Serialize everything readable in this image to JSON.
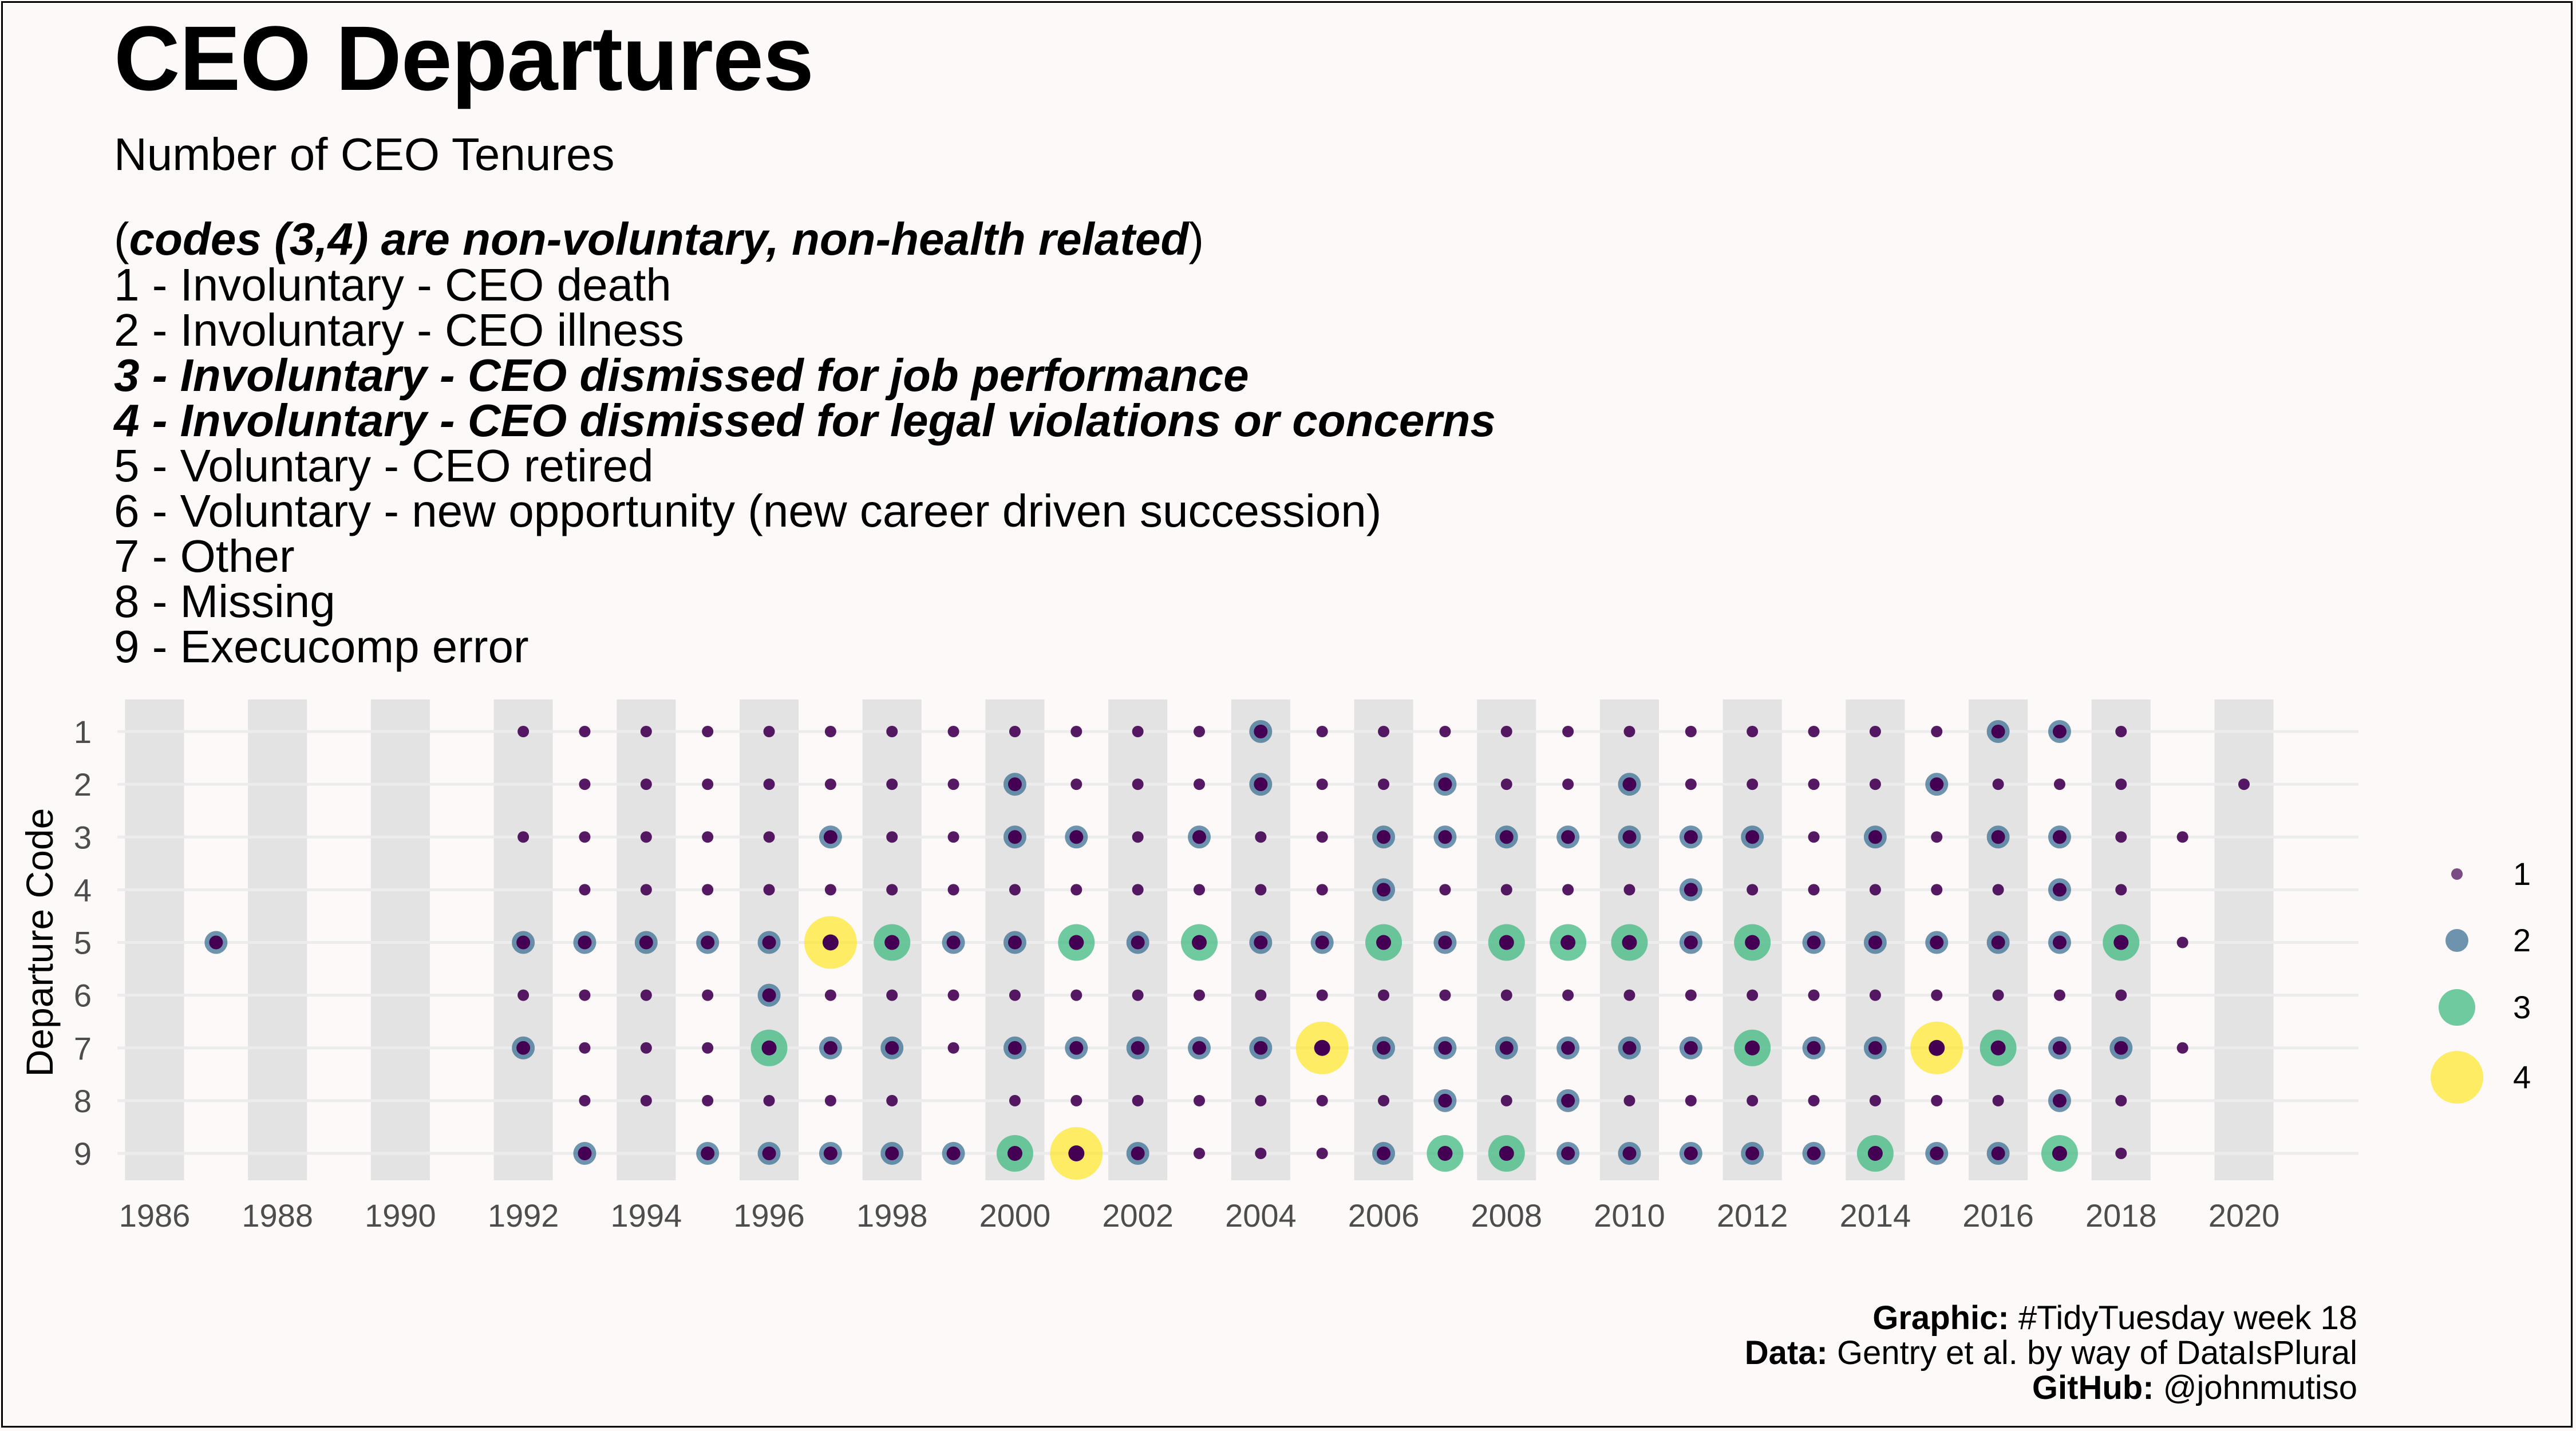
{
  "title": "CEO Departures",
  "subtitle": "Number of CEO Tenures",
  "code_note": {
    "open": "(",
    "text": "codes (3,4) are non-voluntary, non-health related",
    "close": ")"
  },
  "codes": [
    {
      "text": "1 - Involuntary - CEO death",
      "emphasis": false
    },
    {
      "text": "2 - Involuntary - CEO illness",
      "emphasis": false
    },
    {
      "text": "3 - Involuntary - CEO dismissed for job performance",
      "emphasis": true
    },
    {
      "text": "4 - Involuntary - CEO dismissed for legal violations or concerns",
      "emphasis": true
    },
    {
      "text": "5 - Voluntary - CEO retired",
      "emphasis": false
    },
    {
      "text": "6 - Voluntary - new opportunity (new career driven succession)",
      "emphasis": false
    },
    {
      "text": "7 - Other",
      "emphasis": false
    },
    {
      "text": "8 - Missing",
      "emphasis": false
    },
    {
      "text": "9 - Execucomp error",
      "emphasis": false
    }
  ],
  "caption": [
    {
      "label": "Graphic:",
      "text": " #TidyTuesday week 18"
    },
    {
      "label": "Data:",
      "text": " Gentry et al. by way of DataIsPlural"
    },
    {
      "label": "GitHub:",
      "text": " @johnmutiso"
    }
  ],
  "chart_data": {
    "type": "scatter",
    "ylabel": "Departure Code",
    "xlabel": "",
    "x_ticks": [
      "1986",
      "1988",
      "1990",
      "1992",
      "1994",
      "1996",
      "1998",
      "2000",
      "2002",
      "2004",
      "2006",
      "2008",
      "2010",
      "2012",
      "2014",
      "2016",
      "2018",
      "2020"
    ],
    "y_ticks": [
      "1",
      "2",
      "3",
      "4",
      "5",
      "6",
      "7",
      "8",
      "9"
    ],
    "xlim": [
      1985.5,
      2021.5
    ],
    "ylim": [
      1,
      9
    ],
    "y_reversed": true,
    "even_year_bands": true,
    "legend": {
      "position": "right",
      "entries": [
        "1",
        "2",
        "3",
        "4"
      ]
    },
    "colors": {
      "1": "#440154",
      "2": "#31688e",
      "3": "#35b779",
      "4": "#fde725"
    },
    "dot_color": "#440154",
    "band_color": "#e3e3e3",
    "grid_color": "#ececec",
    "note": "size/color encode the number of CEO tenures (1-4)",
    "points": [
      [
        1987,
        5,
        2
      ],
      [
        1992,
        1,
        1
      ],
      [
        1992,
        3,
        1
      ],
      [
        1992,
        5,
        2
      ],
      [
        1992,
        6,
        1
      ],
      [
        1992,
        7,
        2
      ],
      [
        1993,
        1,
        1
      ],
      [
        1993,
        2,
        1
      ],
      [
        1993,
        3,
        1
      ],
      [
        1993,
        4,
        1
      ],
      [
        1993,
        5,
        2
      ],
      [
        1993,
        6,
        1
      ],
      [
        1993,
        7,
        1
      ],
      [
        1993,
        8,
        1
      ],
      [
        1993,
        9,
        2
      ],
      [
        1994,
        1,
        1
      ],
      [
        1994,
        2,
        1
      ],
      [
        1994,
        3,
        1
      ],
      [
        1994,
        4,
        1
      ],
      [
        1994,
        5,
        2
      ],
      [
        1994,
        6,
        1
      ],
      [
        1994,
        7,
        1
      ],
      [
        1994,
        8,
        1
      ],
      [
        1995,
        1,
        1
      ],
      [
        1995,
        2,
        1
      ],
      [
        1995,
        3,
        1
      ],
      [
        1995,
        4,
        1
      ],
      [
        1995,
        5,
        2
      ],
      [
        1995,
        6,
        1
      ],
      [
        1995,
        7,
        1
      ],
      [
        1995,
        8,
        1
      ],
      [
        1995,
        9,
        2
      ],
      [
        1996,
        1,
        1
      ],
      [
        1996,
        2,
        1
      ],
      [
        1996,
        3,
        1
      ],
      [
        1996,
        4,
        1
      ],
      [
        1996,
        5,
        2
      ],
      [
        1996,
        6,
        2
      ],
      [
        1996,
        7,
        3
      ],
      [
        1996,
        8,
        1
      ],
      [
        1996,
        9,
        2
      ],
      [
        1997,
        1,
        1
      ],
      [
        1997,
        2,
        1
      ],
      [
        1997,
        3,
        2
      ],
      [
        1997,
        4,
        1
      ],
      [
        1997,
        5,
        4
      ],
      [
        1997,
        6,
        1
      ],
      [
        1997,
        7,
        2
      ],
      [
        1997,
        8,
        1
      ],
      [
        1997,
        9,
        2
      ],
      [
        1998,
        1,
        1
      ],
      [
        1998,
        2,
        1
      ],
      [
        1998,
        3,
        1
      ],
      [
        1998,
        4,
        1
      ],
      [
        1998,
        5,
        3
      ],
      [
        1998,
        6,
        1
      ],
      [
        1998,
        7,
        2
      ],
      [
        1998,
        8,
        1
      ],
      [
        1998,
        9,
        2
      ],
      [
        1999,
        1,
        1
      ],
      [
        1999,
        2,
        1
      ],
      [
        1999,
        3,
        1
      ],
      [
        1999,
        4,
        1
      ],
      [
        1999,
        5,
        2
      ],
      [
        1999,
        6,
        1
      ],
      [
        1999,
        7,
        1
      ],
      [
        1999,
        9,
        2
      ],
      [
        2000,
        1,
        1
      ],
      [
        2000,
        2,
        2
      ],
      [
        2000,
        3,
        2
      ],
      [
        2000,
        4,
        1
      ],
      [
        2000,
        5,
        2
      ],
      [
        2000,
        6,
        1
      ],
      [
        2000,
        7,
        2
      ],
      [
        2000,
        8,
        1
      ],
      [
        2000,
        9,
        3
      ],
      [
        2001,
        1,
        1
      ],
      [
        2001,
        2,
        1
      ],
      [
        2001,
        3,
        2
      ],
      [
        2001,
        4,
        1
      ],
      [
        2001,
        5,
        3
      ],
      [
        2001,
        6,
        1
      ],
      [
        2001,
        7,
        2
      ],
      [
        2001,
        8,
        1
      ],
      [
        2001,
        9,
        4
      ],
      [
        2002,
        1,
        1
      ],
      [
        2002,
        2,
        1
      ],
      [
        2002,
        3,
        1
      ],
      [
        2002,
        4,
        1
      ],
      [
        2002,
        5,
        2
      ],
      [
        2002,
        6,
        1
      ],
      [
        2002,
        7,
        2
      ],
      [
        2002,
        8,
        1
      ],
      [
        2002,
        9,
        2
      ],
      [
        2003,
        1,
        1
      ],
      [
        2003,
        2,
        1
      ],
      [
        2003,
        3,
        2
      ],
      [
        2003,
        4,
        1
      ],
      [
        2003,
        5,
        3
      ],
      [
        2003,
        6,
        1
      ],
      [
        2003,
        7,
        2
      ],
      [
        2003,
        8,
        1
      ],
      [
        2003,
        9,
        1
      ],
      [
        2004,
        1,
        2
      ],
      [
        2004,
        2,
        2
      ],
      [
        2004,
        3,
        1
      ],
      [
        2004,
        4,
        1
      ],
      [
        2004,
        5,
        2
      ],
      [
        2004,
        6,
        1
      ],
      [
        2004,
        7,
        2
      ],
      [
        2004,
        8,
        1
      ],
      [
        2004,
        9,
        1
      ],
      [
        2005,
        1,
        1
      ],
      [
        2005,
        2,
        1
      ],
      [
        2005,
        3,
        1
      ],
      [
        2005,
        4,
        1
      ],
      [
        2005,
        5,
        2
      ],
      [
        2005,
        6,
        1
      ],
      [
        2005,
        7,
        4
      ],
      [
        2005,
        8,
        1
      ],
      [
        2005,
        9,
        1
      ],
      [
        2006,
        1,
        1
      ],
      [
        2006,
        2,
        1
      ],
      [
        2006,
        3,
        2
      ],
      [
        2006,
        4,
        2
      ],
      [
        2006,
        5,
        3
      ],
      [
        2006,
        6,
        1
      ],
      [
        2006,
        7,
        2
      ],
      [
        2006,
        8,
        1
      ],
      [
        2006,
        9,
        2
      ],
      [
        2007,
        1,
        1
      ],
      [
        2007,
        2,
        2
      ],
      [
        2007,
        3,
        2
      ],
      [
        2007,
        4,
        1
      ],
      [
        2007,
        5,
        2
      ],
      [
        2007,
        6,
        1
      ],
      [
        2007,
        7,
        2
      ],
      [
        2007,
        8,
        2
      ],
      [
        2007,
        9,
        3
      ],
      [
        2008,
        1,
        1
      ],
      [
        2008,
        2,
        1
      ],
      [
        2008,
        3,
        2
      ],
      [
        2008,
        4,
        1
      ],
      [
        2008,
        5,
        3
      ],
      [
        2008,
        6,
        1
      ],
      [
        2008,
        7,
        2
      ],
      [
        2008,
        8,
        1
      ],
      [
        2008,
        9,
        3
      ],
      [
        2009,
        1,
        1
      ],
      [
        2009,
        2,
        1
      ],
      [
        2009,
        3,
        2
      ],
      [
        2009,
        4,
        1
      ],
      [
        2009,
        5,
        3
      ],
      [
        2009,
        6,
        1
      ],
      [
        2009,
        7,
        2
      ],
      [
        2009,
        8,
        2
      ],
      [
        2009,
        9,
        2
      ],
      [
        2010,
        1,
        1
      ],
      [
        2010,
        2,
        2
      ],
      [
        2010,
        3,
        2
      ],
      [
        2010,
        4,
        1
      ],
      [
        2010,
        5,
        3
      ],
      [
        2010,
        6,
        1
      ],
      [
        2010,
        7,
        2
      ],
      [
        2010,
        8,
        1
      ],
      [
        2010,
        9,
        2
      ],
      [
        2011,
        1,
        1
      ],
      [
        2011,
        2,
        1
      ],
      [
        2011,
        3,
        2
      ],
      [
        2011,
        4,
        2
      ],
      [
        2011,
        5,
        2
      ],
      [
        2011,
        6,
        1
      ],
      [
        2011,
        7,
        2
      ],
      [
        2011,
        8,
        1
      ],
      [
        2011,
        9,
        2
      ],
      [
        2012,
        1,
        1
      ],
      [
        2012,
        2,
        1
      ],
      [
        2012,
        3,
        2
      ],
      [
        2012,
        4,
        1
      ],
      [
        2012,
        5,
        3
      ],
      [
        2012,
        6,
        1
      ],
      [
        2012,
        7,
        3
      ],
      [
        2012,
        8,
        1
      ],
      [
        2012,
        9,
        2
      ],
      [
        2013,
        1,
        1
      ],
      [
        2013,
        2,
        1
      ],
      [
        2013,
        3,
        1
      ],
      [
        2013,
        4,
        1
      ],
      [
        2013,
        5,
        2
      ],
      [
        2013,
        6,
        1
      ],
      [
        2013,
        7,
        2
      ],
      [
        2013,
        8,
        1
      ],
      [
        2013,
        9,
        2
      ],
      [
        2014,
        1,
        1
      ],
      [
        2014,
        2,
        1
      ],
      [
        2014,
        3,
        2
      ],
      [
        2014,
        4,
        1
      ],
      [
        2014,
        5,
        2
      ],
      [
        2014,
        6,
        1
      ],
      [
        2014,
        7,
        2
      ],
      [
        2014,
        8,
        1
      ],
      [
        2014,
        9,
        3
      ],
      [
        2015,
        1,
        1
      ],
      [
        2015,
        2,
        2
      ],
      [
        2015,
        3,
        1
      ],
      [
        2015,
        4,
        1
      ],
      [
        2015,
        5,
        2
      ],
      [
        2015,
        6,
        1
      ],
      [
        2015,
        7,
        4
      ],
      [
        2015,
        8,
        1
      ],
      [
        2015,
        9,
        2
      ],
      [
        2016,
        1,
        2
      ],
      [
        2016,
        2,
        1
      ],
      [
        2016,
        3,
        2
      ],
      [
        2016,
        4,
        1
      ],
      [
        2016,
        5,
        2
      ],
      [
        2016,
        6,
        1
      ],
      [
        2016,
        7,
        3
      ],
      [
        2016,
        8,
        1
      ],
      [
        2016,
        9,
        2
      ],
      [
        2017,
        1,
        2
      ],
      [
        2017,
        2,
        1
      ],
      [
        2017,
        3,
        2
      ],
      [
        2017,
        4,
        2
      ],
      [
        2017,
        5,
        2
      ],
      [
        2017,
        6,
        1
      ],
      [
        2017,
        7,
        2
      ],
      [
        2017,
        8,
        2
      ],
      [
        2017,
        9,
        3
      ],
      [
        2018,
        1,
        1
      ],
      [
        2018,
        2,
        1
      ],
      [
        2018,
        3,
        1
      ],
      [
        2018,
        4,
        1
      ],
      [
        2018,
        5,
        3
      ],
      [
        2018,
        6,
        1
      ],
      [
        2018,
        7,
        2
      ],
      [
        2018,
        8,
        1
      ],
      [
        2018,
        9,
        1
      ],
      [
        2019,
        3,
        1
      ],
      [
        2019,
        5,
        1
      ],
      [
        2019,
        7,
        1
      ],
      [
        2020,
        2,
        1
      ]
    ]
  }
}
